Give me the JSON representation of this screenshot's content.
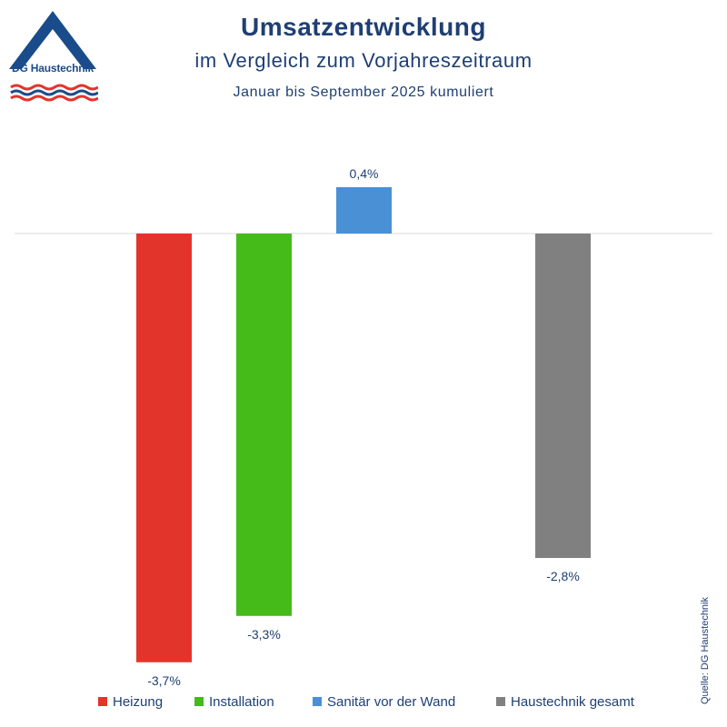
{
  "header": {
    "title": "Umsatzentwicklung",
    "subtitle": "im Vergleich zum Vorjahreszeitraum",
    "period": "Januar bis September 2025 kumuliert"
  },
  "logo": {
    "text": "DG Haustechnik"
  },
  "source": "Quelle: DG Haustechnik",
  "chart_data": {
    "type": "bar",
    "title": "Umsatzentwicklung",
    "categories": [
      "Heizung",
      "Installation",
      "Sanitär vor der Wand",
      "Haustechnik gesamt"
    ],
    "values": [
      -3.7,
      -3.3,
      0.4,
      -2.8
    ],
    "labels": [
      "-3,7%",
      "-3,3%",
      "0,4%",
      "-2,8%"
    ],
    "colors": [
      "#e3342b",
      "#44bb18",
      "#4a90d4",
      "#808080"
    ],
    "unit": "%",
    "xlabel": "",
    "ylabel": "",
    "ylim": [
      -3.7,
      0.4
    ],
    "grid": false,
    "legend_position": "bottom"
  }
}
